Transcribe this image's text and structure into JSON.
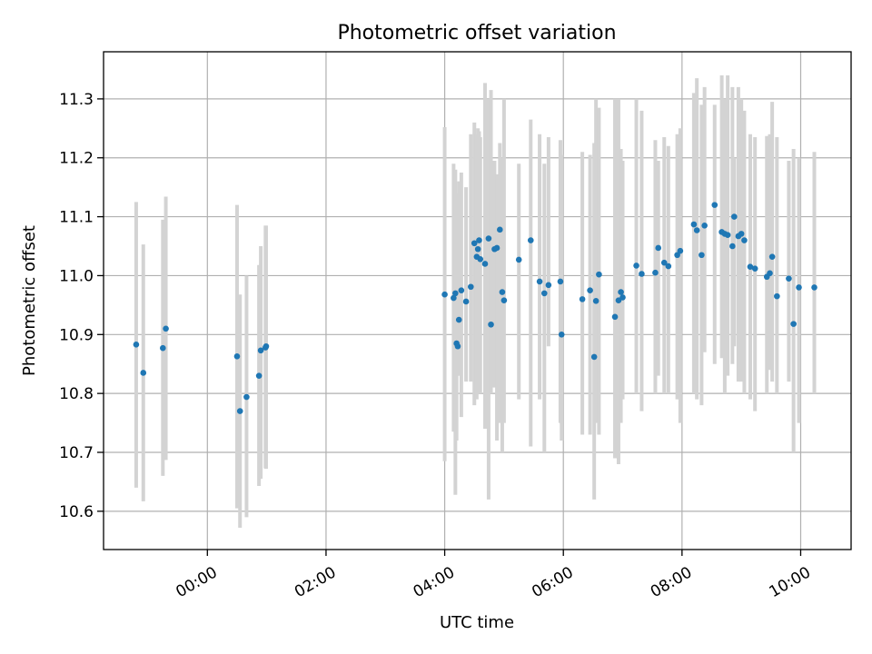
{
  "chart_data": {
    "type": "scatter",
    "title": "Photometric offset variation",
    "xlabel": "UTC time",
    "ylabel": "Photometric offset",
    "xlim": [
      -1.75,
      10.85
    ],
    "ylim": [
      10.535,
      11.38
    ],
    "grid": true,
    "legend": "none",
    "x_ticks": [
      {
        "value": 0,
        "label": "00:00"
      },
      {
        "value": 2,
        "label": "02:00"
      },
      {
        "value": 4,
        "label": "04:00"
      },
      {
        "value": 6,
        "label": "06:00"
      },
      {
        "value": 8,
        "label": "08:00"
      },
      {
        "value": 10,
        "label": "10:00"
      }
    ],
    "y_ticks": [
      {
        "value": 10.6,
        "label": "10.6"
      },
      {
        "value": 10.7,
        "label": "10.7"
      },
      {
        "value": 10.8,
        "label": "10.8"
      },
      {
        "value": 10.9,
        "label": "10.9"
      },
      {
        "value": 11.0,
        "label": "11.0"
      },
      {
        "value": 11.1,
        "label": "11.1"
      },
      {
        "value": 11.2,
        "label": "11.2"
      },
      {
        "value": 11.3,
        "label": "11.3"
      }
    ],
    "series": [
      {
        "name": "offset",
        "color": "#1f77b4",
        "errorbar_color": "#d3d3d3",
        "x": [
          -1.2,
          -1.08,
          -0.75,
          -0.7,
          0.5,
          0.55,
          0.66,
          0.87,
          0.9,
          0.98,
          0.99,
          4.0,
          4.15,
          4.18,
          4.2,
          4.22,
          4.24,
          4.28,
          4.36,
          4.44,
          4.5,
          4.54,
          4.56,
          4.58,
          4.6,
          4.68,
          4.74,
          4.78,
          4.84,
          4.88,
          4.93,
          4.97,
          5.0,
          5.25,
          5.45,
          5.6,
          5.68,
          5.75,
          5.95,
          5.97,
          6.32,
          6.45,
          6.52,
          6.55,
          6.6,
          6.87,
          6.93,
          6.97,
          7.0,
          7.23,
          7.32,
          7.55,
          7.6,
          7.7,
          7.77,
          7.92,
          7.97,
          8.2,
          8.25,
          8.33,
          8.38,
          8.55,
          8.67,
          8.72,
          8.77,
          8.85,
          8.88,
          8.95,
          9.0,
          9.05,
          9.15,
          9.23,
          9.43,
          9.48,
          9.52,
          9.6,
          9.8,
          9.88,
          9.97,
          10.23
        ],
        "y": [
          10.883,
          10.835,
          10.877,
          10.91,
          10.863,
          10.77,
          10.794,
          10.83,
          10.873,
          10.878,
          10.88,
          10.968,
          10.962,
          10.97,
          10.885,
          10.88,
          10.925,
          10.975,
          10.956,
          10.981,
          11.055,
          11.032,
          11.045,
          11.06,
          11.028,
          11.02,
          11.063,
          10.917,
          11.045,
          11.047,
          11.078,
          10.972,
          10.958,
          11.027,
          11.06,
          10.99,
          10.97,
          10.984,
          10.99,
          10.9,
          10.96,
          10.975,
          10.862,
          10.957,
          11.002,
          10.93,
          10.958,
          10.972,
          10.963,
          11.017,
          11.003,
          11.005,
          11.047,
          11.022,
          11.016,
          11.035,
          11.042,
          11.087,
          11.077,
          11.035,
          11.085,
          11.12,
          11.074,
          11.071,
          11.069,
          11.05,
          11.1,
          11.067,
          11.071,
          11.06,
          11.015,
          11.012,
          10.998,
          11.004,
          11.032,
          10.965,
          10.995,
          10.918,
          10.98,
          10.98
        ],
        "ylow": [
          10.64,
          10.617,
          10.66,
          10.687,
          10.605,
          10.572,
          10.59,
          10.643,
          10.655,
          10.673,
          10.672,
          10.685,
          10.735,
          10.628,
          10.72,
          10.83,
          10.83,
          10.76,
          10.82,
          10.82,
          10.78,
          10.79,
          10.8,
          10.8,
          10.8,
          10.74,
          10.62,
          10.8,
          10.81,
          10.72,
          10.75,
          10.7,
          10.75,
          10.79,
          10.71,
          10.79,
          10.7,
          10.88,
          10.75,
          10.72,
          10.73,
          10.73,
          10.62,
          10.75,
          10.73,
          10.69,
          10.68,
          10.75,
          10.79,
          10.8,
          10.77,
          10.8,
          10.83,
          10.8,
          10.8,
          10.79,
          10.75,
          10.8,
          10.79,
          10.78,
          10.87,
          10.85,
          10.86,
          10.8,
          10.83,
          10.85,
          10.88,
          10.82,
          10.82,
          10.8,
          10.79,
          10.77,
          10.8,
          10.84,
          10.82,
          10.8,
          10.82,
          10.7,
          10.75,
          10.8
        ],
        "yhigh": [
          11.125,
          11.053,
          11.095,
          11.134,
          11.12,
          10.968,
          11.0,
          11.018,
          11.05,
          11.085,
          11.085,
          11.252,
          11.19,
          11.18,
          11.135,
          11.14,
          11.16,
          11.175,
          11.15,
          11.24,
          11.26,
          11.24,
          11.25,
          11.245,
          11.235,
          11.327,
          11.3,
          11.315,
          11.195,
          11.172,
          11.225,
          11.2,
          11.3,
          11.19,
          11.265,
          11.24,
          11.19,
          11.235,
          11.23,
          11.205,
          11.21,
          11.205,
          11.225,
          11.3,
          11.285,
          11.3,
          11.3,
          11.215,
          11.195,
          11.3,
          11.28,
          11.23,
          11.195,
          11.235,
          11.22,
          11.24,
          11.25,
          11.31,
          11.335,
          11.29,
          11.32,
          11.29,
          11.34,
          11.3,
          11.34,
          11.32,
          11.2,
          11.32,
          11.3,
          11.28,
          11.24,
          11.235,
          11.237,
          11.24,
          11.295,
          11.235,
          11.195,
          11.215,
          11.2,
          11.21
        ]
      }
    ]
  }
}
